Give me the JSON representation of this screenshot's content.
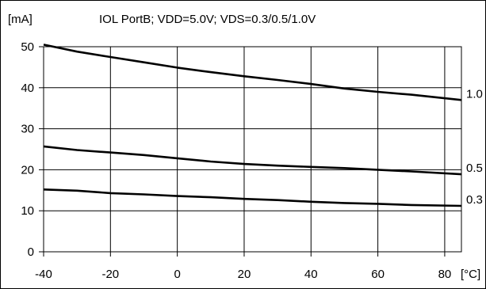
{
  "chart_data": {
    "type": "line",
    "title": "IOL PortB; VDD=5.0V; VDS=0.3/0.5/1.0V",
    "ylabel": "[mA]",
    "xlabel": "[°C]",
    "xlim": [
      -40,
      85
    ],
    "ylim": [
      0,
      50
    ],
    "x_ticks": [
      -40,
      -20,
      0,
      20,
      40,
      60,
      80
    ],
    "y_ticks": [
      0,
      10,
      20,
      30,
      40,
      50
    ],
    "x_tick_labels": [
      "-40",
      "-20",
      "0",
      "20",
      "40",
      "60",
      "80"
    ],
    "y_tick_labels": [
      "0",
      "10",
      "20",
      "30",
      "40",
      "50"
    ],
    "grid": true,
    "series": [
      {
        "name": "1.0",
        "x": [
          -40,
          -30,
          -20,
          -10,
          0,
          10,
          20,
          30,
          40,
          50,
          60,
          70,
          85
        ],
        "y": [
          50.5,
          48.8,
          47.5,
          46.2,
          44.9,
          43.8,
          42.8,
          41.9,
          40.9,
          39.8,
          39.0,
          38.3,
          37.0
        ]
      },
      {
        "name": "0.5",
        "x": [
          -40,
          -30,
          -20,
          -10,
          0,
          10,
          20,
          30,
          40,
          50,
          60,
          70,
          85
        ],
        "y": [
          25.7,
          24.8,
          24.2,
          23.6,
          22.8,
          22.0,
          21.4,
          21.0,
          20.7,
          20.4,
          20.0,
          19.6,
          18.9
        ]
      },
      {
        "name": "0.3",
        "x": [
          -40,
          -30,
          -20,
          -10,
          0,
          10,
          20,
          30,
          40,
          50,
          60,
          70,
          85
        ],
        "y": [
          15.2,
          14.9,
          14.3,
          14.0,
          13.6,
          13.3,
          12.9,
          12.6,
          12.2,
          11.9,
          11.7,
          11.4,
          11.2
        ]
      }
    ]
  }
}
